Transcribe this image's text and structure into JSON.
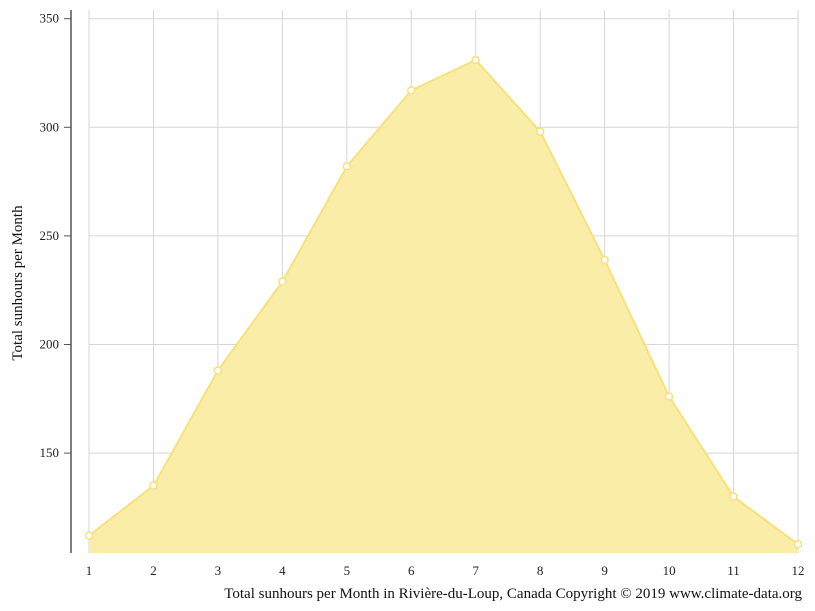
{
  "chart_data": {
    "type": "area",
    "title": "",
    "xlabel": "",
    "ylabel": "Total sunhours per Month",
    "caption": "Total sunhours per Month in Rivière-du-Loup, Canada Copyright © 2019 www.climate-data.org",
    "x": [
      1,
      2,
      3,
      4,
      5,
      6,
      7,
      8,
      9,
      10,
      11,
      12
    ],
    "x_tick_labels": [
      "1",
      "2",
      "3",
      "4",
      "5",
      "6",
      "7",
      "8",
      "9",
      "10",
      "11",
      "12"
    ],
    "y_ticks": [
      150,
      200,
      250,
      300,
      350
    ],
    "y_tick_labels": [
      "150",
      "200",
      "250",
      "300",
      "350"
    ],
    "ylim": [
      104,
      354
    ],
    "grid": true,
    "series": [
      {
        "values": [
          112,
          135,
          188,
          229,
          282,
          317,
          331,
          298,
          239,
          176,
          130,
          108
        ],
        "color": "#f7e17a",
        "fill": "#faeda8"
      }
    ]
  }
}
